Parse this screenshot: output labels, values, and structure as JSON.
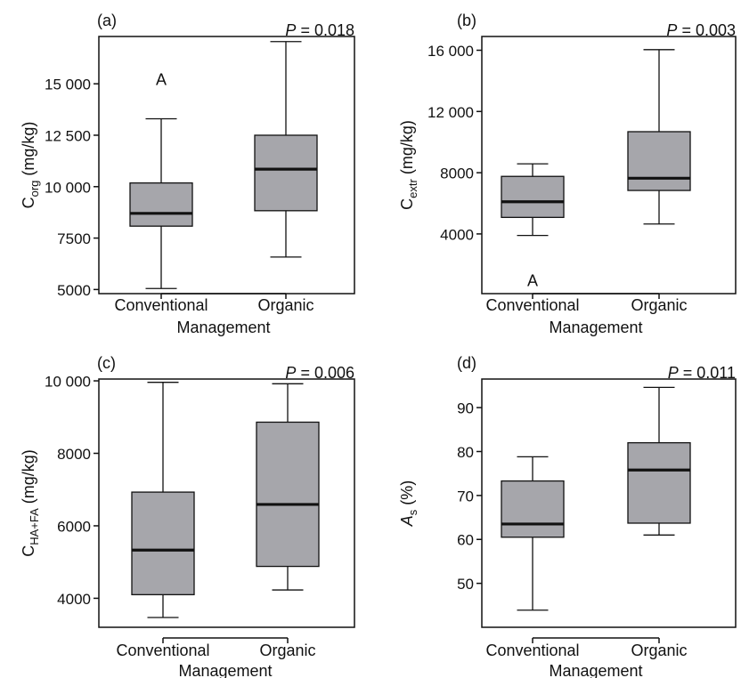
{
  "chart_data": [
    {
      "panel_label": "(a)",
      "type": "box",
      "p_text": "= 0.018",
      "p_symbol": "P",
      "ylabel_main": "C",
      "ylabel_sub": "org",
      "ylabel_unit": " (mg/kg)",
      "xlabel": "Management",
      "categories": [
        "Conventional",
        "Organic"
      ],
      "yticks": [
        5000,
        7500,
        10000,
        12500,
        15000
      ],
      "ytick_labels": [
        "5000",
        "7500",
        "10 000",
        "12 500",
        "15 000"
      ],
      "ylim": [
        4800,
        17300
      ],
      "boxes": [
        {
          "min": 5050,
          "q1": 8080,
          "median": 8700,
          "q3": 10180,
          "max": 13300
        },
        {
          "min": 6580,
          "q1": 8830,
          "median": 10850,
          "q3": 12500,
          "max": 17050
        }
      ],
      "annotations": [
        {
          "text": "A",
          "category": 0,
          "y": 15250
        }
      ]
    },
    {
      "panel_label": "(b)",
      "type": "box",
      "p_text": "= 0.003",
      "p_symbol": "P",
      "ylabel_main": "C",
      "ylabel_sub": "extr",
      "ylabel_unit": " (mg/kg)",
      "xlabel": "Management",
      "categories": [
        "Conventional",
        "Organic"
      ],
      "yticks": [
        4000,
        8000,
        12000,
        16000
      ],
      "ytick_labels": [
        "4000",
        "8000",
        "12 000",
        "16 000"
      ],
      "ylim": [
        100,
        16900
      ],
      "boxes": [
        {
          "min": 3900,
          "q1": 5080,
          "median": 6100,
          "q3": 7760,
          "max": 8580
        },
        {
          "min": 4650,
          "q1": 6840,
          "median": 7640,
          "q3": 10680,
          "max": 16040
        }
      ],
      "annotations": [
        {
          "text": "A",
          "category": 0,
          "y": 1000
        }
      ]
    },
    {
      "panel_label": "(c)",
      "type": "box",
      "p_text": "= 0.006",
      "p_symbol": "P",
      "ylabel_main": "C",
      "ylabel_sub": "HA+FA",
      "ylabel_unit": " (mg/kg)",
      "xlabel": "Management",
      "categories": [
        "Conventional",
        "Organic"
      ],
      "yticks": [
        4000,
        6000,
        8000,
        10000
      ],
      "ytick_labels": [
        "4000",
        "6000",
        "8000",
        "10 000"
      ],
      "ylim": [
        3200,
        10050
      ],
      "boxes": [
        {
          "min": 3470,
          "q1": 4100,
          "median": 5330,
          "q3": 6930,
          "max": 9960
        },
        {
          "min": 4230,
          "q1": 4880,
          "median": 6590,
          "q3": 8860,
          "max": 9920
        }
      ],
      "annotations": []
    },
    {
      "panel_label": "(d)",
      "type": "box",
      "p_text": "= 0.011",
      "p_symbol": "P",
      "ylabel_main": "A",
      "ylabel_sub": "s",
      "ylabel_unit": " (%)",
      "xlabel": "Management",
      "categories": [
        "Conventional",
        "Organic"
      ],
      "yticks": [
        50,
        60,
        70,
        80,
        90
      ],
      "ytick_labels": [
        "50",
        "60",
        "70",
        "80",
        "90"
      ],
      "ylim": [
        40,
        96.5
      ],
      "boxes": [
        {
          "min": 43.9,
          "q1": 60.5,
          "median": 63.5,
          "q3": 73.3,
          "max": 78.8
        },
        {
          "min": 61.0,
          "q1": 63.7,
          "median": 75.8,
          "q3": 82.0,
          "max": 94.6
        }
      ],
      "annotations": []
    }
  ],
  "colors": {
    "box_fill": "#a6a6ab",
    "stroke": "#111111",
    "background": "#ffffff"
  }
}
